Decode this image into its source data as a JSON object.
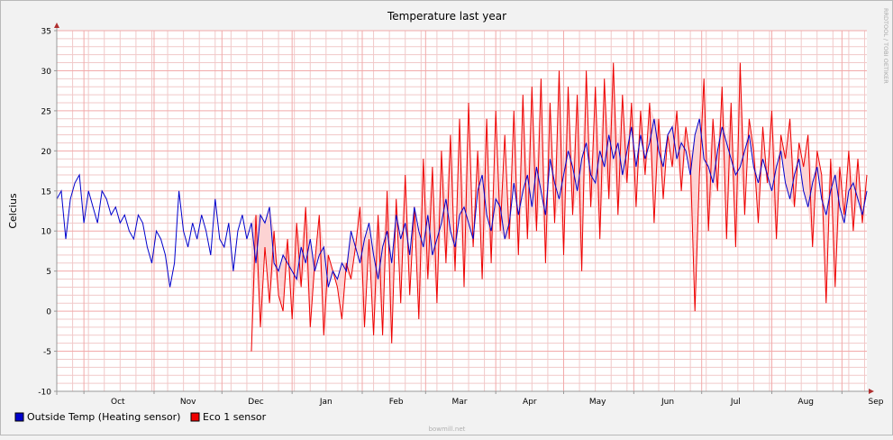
{
  "chart_data": {
    "type": "line",
    "title": "Temperature last year",
    "ylabel": "Celcius",
    "xlabel": "",
    "side_label": "RRDTOOL / TOBI OETIKER",
    "footer": "bowmill.net",
    "ylim": [
      -10,
      35
    ],
    "y_ticks": [
      -10,
      -5,
      0,
      5,
      10,
      15,
      20,
      25,
      30,
      35
    ],
    "x_range_days": [
      -12,
      346
    ],
    "month_ticks": [
      {
        "label": "Oct",
        "day": 0
      },
      {
        "label": "Nov",
        "day": 31
      },
      {
        "label": "Dec",
        "day": 61
      },
      {
        "label": "Jan",
        "day": 92
      },
      {
        "label": "Feb",
        "day": 123
      },
      {
        "label": "Mar",
        "day": 151
      },
      {
        "label": "Apr",
        "day": 182
      },
      {
        "label": "May",
        "day": 212
      },
      {
        "label": "Jun",
        "day": 243
      },
      {
        "label": "Jul",
        "day": 273
      },
      {
        "label": "Aug",
        "day": 304
      },
      {
        "label": "Sep",
        "day": 335
      }
    ],
    "grid": true,
    "colors": {
      "outside": "#0000cc",
      "eco": "#ee0000",
      "fill": "#fcd3d3",
      "minor_grid": "#f1c9c9",
      "major_grid": "#f2aaaa",
      "axis": "#999999",
      "arrow": "#b03030"
    },
    "series": [
      {
        "name": "Outside Temp (Heating sensor)",
        "x": [
          -12,
          -10,
          -8,
          -6,
          -4,
          -2,
          0,
          2,
          4,
          6,
          8,
          10,
          12,
          14,
          16,
          18,
          20,
          22,
          24,
          26,
          28,
          30,
          32,
          34,
          36,
          38,
          40,
          42,
          44,
          46,
          48,
          50,
          52,
          54,
          56,
          58,
          60,
          62,
          64,
          66,
          68,
          70,
          72,
          74,
          76,
          78,
          80,
          82,
          84,
          86,
          88,
          90,
          92,
          94,
          96,
          98,
          100,
          102,
          104,
          106,
          108,
          110,
          112,
          114,
          116,
          118,
          120,
          122,
          124,
          126,
          128,
          130,
          132,
          134,
          136,
          138,
          140,
          142,
          144,
          146,
          148,
          150,
          152,
          154,
          156,
          158,
          160,
          162,
          164,
          166,
          168,
          170,
          172,
          174,
          176,
          178,
          180,
          182,
          184,
          186,
          188,
          190,
          192,
          194,
          196,
          198,
          200,
          202,
          204,
          206,
          208,
          210,
          212,
          214,
          216,
          218,
          220,
          222,
          224,
          226,
          228,
          230,
          232,
          234,
          236,
          238,
          240,
          242,
          244,
          246,
          248,
          250,
          252,
          254,
          256,
          258,
          260,
          262,
          264,
          266,
          268,
          270,
          272,
          274,
          276,
          278,
          280,
          282,
          284,
          286,
          288,
          290,
          292,
          294,
          296,
          298,
          300,
          302,
          304,
          306,
          308,
          310,
          312,
          314,
          316,
          318,
          320,
          322,
          324,
          326,
          328,
          330,
          332,
          334,
          336,
          338,
          340,
          342,
          344,
          346
        ],
        "values": [
          14,
          15,
          9,
          14,
          16,
          17,
          11,
          15,
          13,
          11,
          15,
          14,
          12,
          13,
          11,
          12,
          10,
          9,
          12,
          11,
          8,
          6,
          10,
          9,
          7,
          3,
          6,
          15,
          10,
          8,
          11,
          9,
          12,
          10,
          7,
          14,
          9,
          8,
          11,
          5,
          10,
          12,
          9,
          11,
          6,
          12,
          11,
          13,
          6,
          5,
          7,
          6,
          5,
          4,
          8,
          6,
          9,
          5,
          7,
          8,
          3,
          5,
          4,
          6,
          5,
          10,
          8,
          6,
          9,
          11,
          7,
          4,
          8,
          10,
          6,
          12,
          9,
          11,
          7,
          13,
          10,
          8,
          12,
          7,
          9,
          11,
          14,
          10,
          8,
          12,
          13,
          11,
          9,
          15,
          17,
          12,
          10,
          14,
          13,
          9,
          11,
          16,
          12,
          15,
          17,
          13,
          18,
          15,
          12,
          19,
          16,
          14,
          17,
          20,
          18,
          15,
          19,
          21,
          17,
          16,
          20,
          18,
          22,
          19,
          21,
          17,
          20,
          23,
          18,
          22,
          19,
          21,
          24,
          20,
          18,
          22,
          23,
          19,
          21,
          20,
          17,
          22,
          24,
          19,
          18,
          16,
          20,
          23,
          21,
          19,
          17,
          18,
          20,
          22,
          18,
          16,
          19,
          17,
          15,
          18,
          20,
          16,
          14,
          17,
          19,
          15,
          13,
          16,
          18,
          14,
          12,
          15,
          17,
          13,
          11,
          15,
          16,
          14,
          12,
          15
        ]
      },
      {
        "name": "Eco 1 sensor",
        "x": [
          74,
          76,
          78,
          80,
          82,
          84,
          86,
          88,
          90,
          92,
          94,
          96,
          98,
          100,
          102,
          104,
          106,
          108,
          110,
          112,
          114,
          116,
          118,
          120,
          122,
          124,
          126,
          128,
          130,
          132,
          134,
          136,
          138,
          140,
          142,
          144,
          146,
          148,
          150,
          152,
          154,
          156,
          158,
          160,
          162,
          164,
          166,
          168,
          170,
          172,
          174,
          176,
          178,
          180,
          182,
          184,
          186,
          188,
          190,
          192,
          194,
          196,
          198,
          200,
          202,
          204,
          206,
          208,
          210,
          212,
          214,
          216,
          218,
          220,
          222,
          224,
          226,
          228,
          230,
          232,
          234,
          236,
          238,
          240,
          242,
          244,
          246,
          248,
          250,
          252,
          254,
          256,
          258,
          260,
          262,
          264,
          266,
          268,
          270,
          272,
          274,
          276,
          278,
          280,
          282,
          284,
          286,
          288,
          290,
          292,
          294,
          296,
          298,
          300,
          302,
          304,
          306,
          308,
          310,
          312,
          314,
          316,
          318,
          320,
          322,
          324,
          326,
          328,
          330,
          332,
          334,
          336,
          338,
          340,
          342,
          344,
          346
        ],
        "values": [
          -5,
          12,
          -2,
          8,
          1,
          10,
          2,
          0,
          9,
          -1,
          11,
          3,
          13,
          -2,
          6,
          12,
          -3,
          7,
          5,
          3,
          -1,
          6,
          4,
          8,
          13,
          -2,
          9,
          -3,
          12,
          -3,
          15,
          -4,
          14,
          1,
          17,
          2,
          13,
          -1,
          19,
          4,
          18,
          1,
          20,
          6,
          22,
          5,
          24,
          3,
          26,
          8,
          20,
          4,
          24,
          6,
          25,
          10,
          22,
          9,
          25,
          7,
          27,
          9,
          28,
          10,
          29,
          6,
          26,
          11,
          30,
          7,
          28,
          12,
          27,
          5,
          30,
          13,
          28,
          9,
          29,
          14,
          31,
          12,
          27,
          16,
          26,
          13,
          25,
          17,
          26,
          11,
          24,
          14,
          22,
          18,
          25,
          15,
          23,
          19,
          0,
          17,
          29,
          10,
          24,
          15,
          28,
          9,
          26,
          8,
          31,
          12,
          24,
          20,
          11,
          23,
          16,
          25,
          9,
          22,
          19,
          24,
          13,
          21,
          18,
          22,
          8,
          20,
          17,
          1,
          19,
          3,
          18,
          12,
          20,
          10,
          19,
          11,
          17
        ]
      }
    ]
  }
}
